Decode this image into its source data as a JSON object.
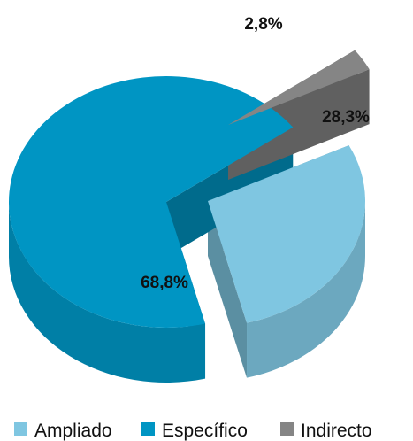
{
  "chart_data": {
    "type": "pie",
    "three_d": true,
    "exploded": true,
    "slices": [
      {
        "name": "Ampliado",
        "value": 28.3,
        "label": "28,3%",
        "color": "#7fc6e1"
      },
      {
        "name": "Específico",
        "value": 68.8,
        "label": "68,8%",
        "color": "#0095c3"
      },
      {
        "name": "Indirecto",
        "value": 2.8,
        "label": "2,8%",
        "color": "#858585"
      }
    ],
    "legend": {
      "position": "bottom",
      "entries": [
        "Ampliado",
        "Específico",
        "Indirecto"
      ]
    }
  }
}
